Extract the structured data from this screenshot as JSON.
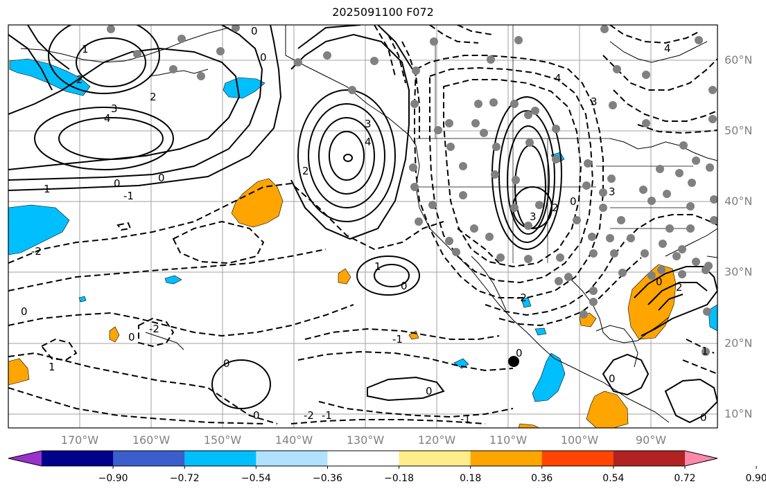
{
  "title": "2025091100 F072",
  "lat_labels": [
    "60°N",
    "50°N",
    "40°N",
    "30°N",
    "20°N",
    "10°N"
  ],
  "lon_labels": [
    "170°W",
    "160°W",
    "150°W",
    "140°W",
    "130°W",
    "120°W",
    "110°W",
    "100°W",
    "90°W"
  ],
  "colorbar": {
    "ticks": [
      "−0.90",
      "−0.72",
      "−0.54",
      "−0.36",
      "−0.18",
      "0.18",
      "0.36",
      "0.54",
      "0.72",
      "0.90"
    ],
    "colors": [
      "#9932cc",
      "#00008b",
      "#3a5fcd",
      "#00bfff",
      "#b0e2ff",
      "#ffffff",
      "#ffec8b",
      "#ffa500",
      "#ff4500",
      "#b22222",
      "#ff88aa"
    ]
  },
  "contour_labels": [
    "0",
    "1",
    "2",
    "3",
    "4",
    "-1",
    "-2"
  ],
  "colors": {
    "axis": "#000000",
    "grid": "#a0a0a0",
    "label": "#808080",
    "station": "#808080"
  }
}
